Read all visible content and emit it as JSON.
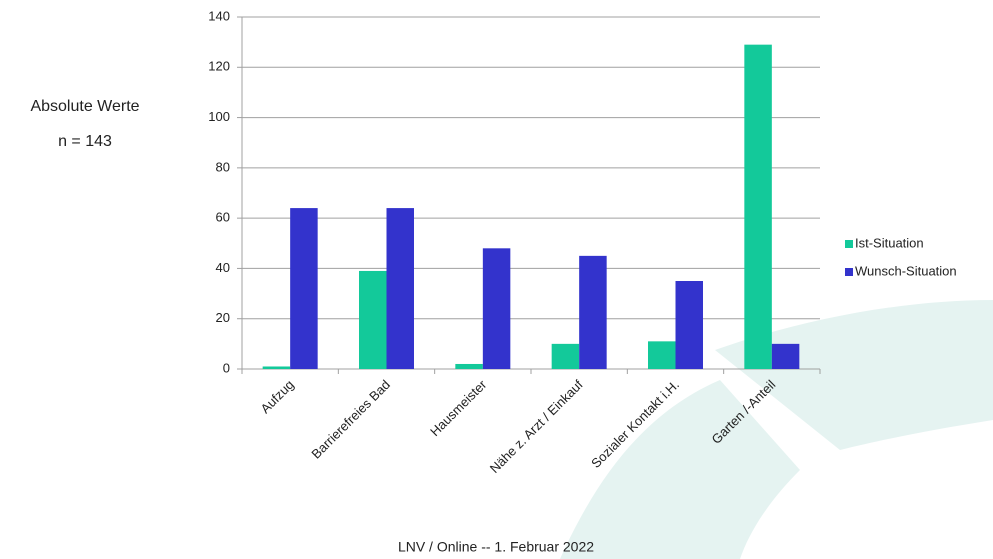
{
  "chart_data": {
    "type": "bar",
    "annotations": [
      "Absolute Werte",
      "n = 143"
    ],
    "footer": "LNV / Online -- 1. Februar 2022",
    "categories": [
      "Aufzug",
      "Barrierefreies Bad",
      "Hausmeister",
      "Nähe z. Arzt / Einkauf",
      "Sozialer Kontakt i.H.",
      "Garten /-Anteil"
    ],
    "series": [
      {
        "name": "Ist-Situation",
        "color": "#13c99a",
        "values": [
          1,
          39,
          2,
          10,
          11,
          129
        ]
      },
      {
        "name": "Wunsch-Situation",
        "color": "#3333cc",
        "values": [
          64,
          64,
          48,
          45,
          35,
          10
        ]
      }
    ],
    "ylim": [
      0,
      140
    ],
    "yticks": [
      0,
      20,
      40,
      60,
      80,
      100,
      120,
      140
    ],
    "grid": true,
    "legend": "right"
  }
}
